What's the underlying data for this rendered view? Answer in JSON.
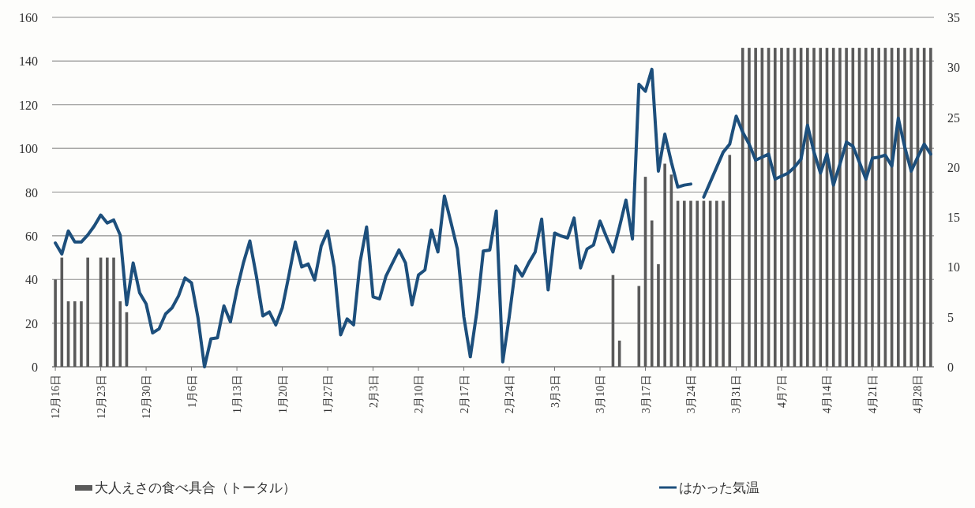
{
  "chart_data": {
    "type": "bar",
    "categories": [
      "12月16日",
      null,
      null,
      null,
      null,
      null,
      null,
      "12月23日",
      null,
      null,
      null,
      null,
      null,
      null,
      "12月30日",
      null,
      null,
      null,
      null,
      null,
      null,
      "1月6日",
      null,
      null,
      null,
      null,
      null,
      null,
      "1月13日",
      null,
      null,
      null,
      null,
      null,
      null,
      "1月20日",
      null,
      null,
      null,
      null,
      null,
      null,
      "1月27日",
      null,
      null,
      null,
      null,
      null,
      null,
      "2月3日",
      null,
      null,
      null,
      null,
      null,
      null,
      "2月10日",
      null,
      null,
      null,
      null,
      null,
      null,
      "2月17日",
      null,
      null,
      null,
      null,
      null,
      null,
      "2月24日",
      null,
      null,
      null,
      null,
      null,
      null,
      "3月3日",
      null,
      null,
      null,
      null,
      null,
      null,
      "3月10日",
      null,
      null,
      null,
      null,
      null,
      null,
      "3月17日",
      null,
      null,
      null,
      null,
      null,
      null,
      "3月24日",
      null,
      null,
      null,
      null,
      null,
      null,
      "3月31日",
      null,
      null,
      null,
      null,
      null,
      null,
      "4月7日",
      null,
      null,
      null,
      null,
      null,
      null,
      "4月14日",
      null,
      null,
      null,
      null,
      null,
      null,
      "4月21日",
      null,
      null,
      null,
      null,
      null,
      null,
      "4月28日",
      null,
      null
    ],
    "series": [
      {
        "name": "大人えさの食べ具合（トータル）",
        "color": "#5a5a5a",
        "values": [
          40,
          50,
          30,
          30,
          30,
          50,
          null,
          50,
          50,
          50,
          30,
          25,
          null,
          null,
          null,
          null,
          null,
          null,
          null,
          null,
          null,
          null,
          null,
          null,
          null,
          null,
          null,
          null,
          null,
          null,
          null,
          null,
          null,
          null,
          null,
          null,
          null,
          null,
          null,
          null,
          null,
          null,
          null,
          null,
          null,
          null,
          null,
          null,
          null,
          null,
          null,
          null,
          null,
          null,
          null,
          null,
          null,
          null,
          null,
          null,
          null,
          null,
          null,
          null,
          null,
          null,
          null,
          null,
          null,
          null,
          null,
          null,
          null,
          null,
          null,
          null,
          null,
          null,
          null,
          null,
          null,
          null,
          null,
          null,
          null,
          null,
          42,
          12,
          null,
          null,
          37,
          87,
          67,
          47,
          93,
          88,
          76,
          76,
          76,
          76,
          76,
          76,
          76,
          76,
          97,
          null,
          146,
          146,
          146,
          146,
          146,
          146,
          146,
          146,
          146,
          146,
          146,
          146,
          146,
          146,
          146,
          146,
          146,
          146,
          146,
          146,
          146,
          146,
          146,
          146,
          146,
          146,
          146,
          146,
          146,
          146
        ]
      },
      {
        "name": "はかった気温",
        "type": "line",
        "axis": "y2",
        "color": "#1d4f7c",
        "values": [
          12.4,
          11.3,
          13.6,
          12.5,
          12.5,
          13.2,
          14.1,
          15.2,
          14.4,
          14.7,
          13.2,
          6.2,
          10.4,
          7.4,
          6.3,
          3.4,
          3.8,
          5.3,
          5.9,
          7.1,
          8.9,
          8.4,
          4.9,
          0,
          2.8,
          2.9,
          6.1,
          4.5,
          7.7,
          10.4,
          12.6,
          9.1,
          5.1,
          5.5,
          4.2,
          5.9,
          9.1,
          12.5,
          10.0,
          10.3,
          8.7,
          12.1,
          13.6,
          10.0,
          3.2,
          4.8,
          4.2,
          10.5,
          14.0,
          7.0,
          6.8,
          9.1,
          10.4,
          11.7,
          10.4,
          6.2,
          9.2,
          9.7,
          13.7,
          11.5,
          17.1,
          14.5,
          11.8,
          5.0,
          1.0,
          5.5,
          11.6,
          11.7,
          15.6,
          0.5,
          5.0,
          10.1,
          9.1,
          10.4,
          11.5,
          14.8,
          7.7,
          13.4,
          13.1,
          12.9,
          14.9,
          9.9,
          11.8,
          12.2,
          14.6,
          13.0,
          11.5,
          14.0,
          16.7,
          12.8,
          28.3,
          27.6,
          29.8,
          19.6,
          23.3,
          20.5,
          18.0,
          18.2,
          18.3,
          null,
          17.0,
          18.5,
          20.0,
          21.5,
          22.3,
          25.1,
          23.5,
          22.3,
          20.7,
          21.0,
          21.3,
          18.8,
          19.1,
          19.4,
          20.0,
          20.8,
          24.2,
          21.5,
          19.4,
          21.3,
          18.2,
          20.3,
          22.5,
          22.1,
          20.5,
          18.8,
          20.9,
          21.0,
          21.2,
          20.1,
          24.9,
          22.0,
          19.6,
          21.0,
          22.3,
          21.3
        ]
      }
    ],
    "ylim": [
      0,
      160
    ],
    "yticks": [
      0,
      20,
      40,
      60,
      80,
      100,
      120,
      140,
      160
    ],
    "y2lim": [
      0,
      35
    ],
    "y2ticks": [
      0,
      5,
      10,
      15,
      20,
      25,
      30,
      35
    ],
    "grid": "y",
    "legend": "bottom"
  }
}
